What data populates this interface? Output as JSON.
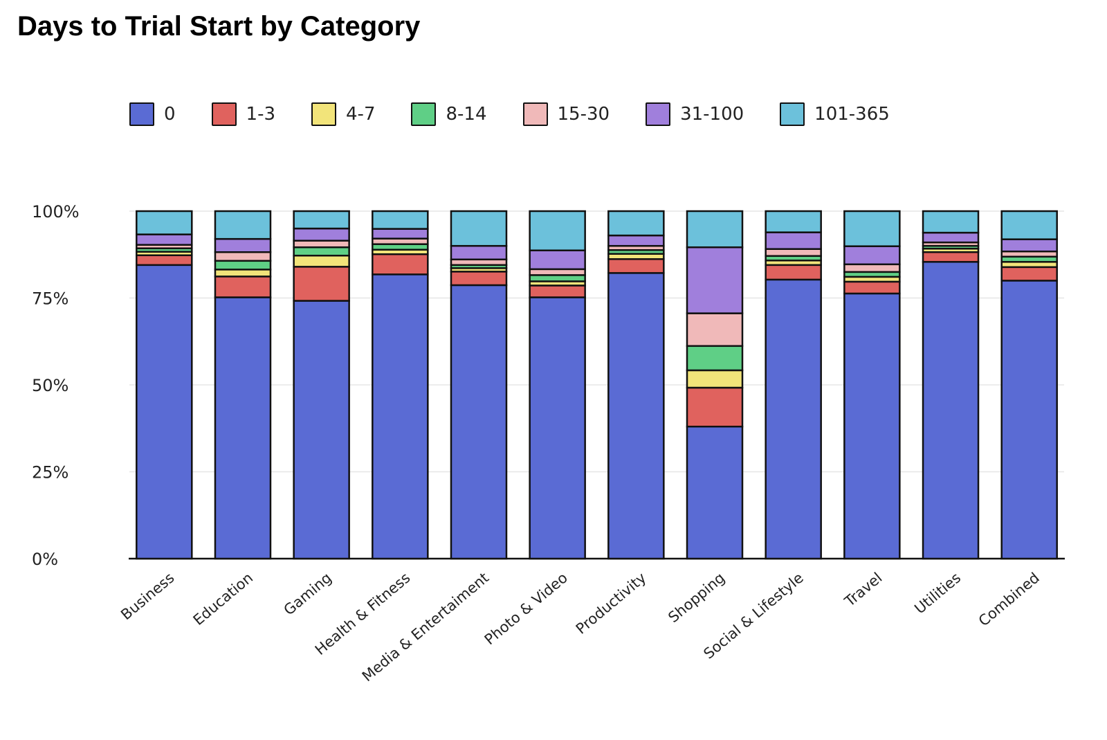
{
  "chart_data": {
    "type": "bar",
    "stacked": true,
    "title": "Days to Trial Start by Category",
    "categories": [
      "Business",
      "Education",
      "Gaming",
      "Health & Fitness",
      "Media & Entertaiment",
      "Photo & Video",
      "Productivity",
      "Shopping",
      "Social & Lifestyle",
      "Travel",
      "Utilities",
      "Combined"
    ],
    "series": [
      {
        "name": "0",
        "color": "#5a6bd4",
        "values": [
          84.5,
          75.2,
          74.2,
          81.8,
          78.7,
          75.2,
          82.2,
          38.0,
          80.3,
          76.3,
          85.4,
          80.0
        ]
      },
      {
        "name": "1-3",
        "color": "#e0625e",
        "values": [
          2.8,
          6.0,
          9.8,
          5.8,
          3.9,
          3.4,
          4.0,
          11.2,
          4.2,
          3.4,
          2.8,
          3.9
        ]
      },
      {
        "name": "4-7",
        "color": "#f2e47a",
        "values": [
          1.0,
          2.0,
          3.2,
          1.3,
          1.0,
          1.2,
          1.5,
          5.0,
          1.3,
          1.4,
          1.0,
          1.5
        ]
      },
      {
        "name": "8-14",
        "color": "#5fcf86",
        "values": [
          1.0,
          2.5,
          2.4,
          1.6,
          0.9,
          1.8,
          1.1,
          7.0,
          1.3,
          1.4,
          0.8,
          1.5
        ]
      },
      {
        "name": "15-30",
        "color": "#f0b9b9",
        "values": [
          1.0,
          2.5,
          1.9,
          1.6,
          1.6,
          1.7,
          1.2,
          9.4,
          2.0,
          2.2,
          1.0,
          1.5
        ]
      },
      {
        "name": "31-100",
        "color": "#a07fdc",
        "values": [
          3.0,
          3.8,
          3.5,
          2.8,
          3.9,
          5.4,
          3.0,
          19.0,
          4.8,
          5.2,
          2.8,
          3.5
        ]
      },
      {
        "name": "101-365",
        "color": "#6cc1db",
        "values": [
          6.7,
          8.0,
          5.0,
          5.1,
          10.0,
          11.3,
          7.0,
          10.4,
          6.1,
          10.1,
          6.2,
          8.1
        ]
      }
    ],
    "ylim": [
      0,
      100
    ],
    "yticks": [
      "0%",
      "25%",
      "50%",
      "75%",
      "100%"
    ],
    "grid": true,
    "legend_position": "top",
    "xlabel": "",
    "ylabel": ""
  }
}
